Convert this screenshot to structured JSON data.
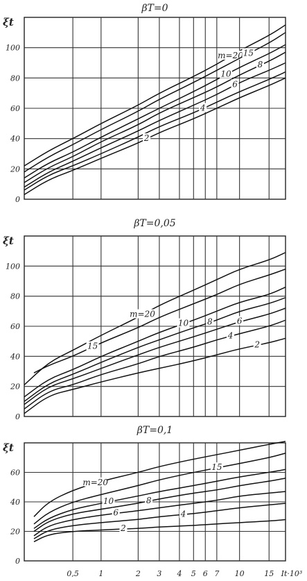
{
  "figure": {
    "x_unit_label": "It·10³",
    "x_ticks": [
      {
        "v": 0.5,
        "label": "0,5"
      },
      {
        "v": 1,
        "label": "1"
      },
      {
        "v": 2,
        "label": "2"
      },
      {
        "v": 3,
        "label": "3"
      },
      {
        "v": 4,
        "label": "4"
      },
      {
        "v": 5,
        "label": "5"
      },
      {
        "v": 6,
        "label": "6"
      },
      {
        "v": 7,
        "label": "7"
      },
      {
        "v": 10,
        "label": "10"
      },
      {
        "v": 15,
        "label": "15"
      }
    ]
  },
  "chart_data": [
    {
      "type": "line",
      "title": "βT=0",
      "ylabel": "ξt",
      "xlabel": "It·10³",
      "ylim": [
        0,
        120
      ],
      "yticks": [
        0,
        20,
        40,
        60,
        80,
        100
      ],
      "xlim": [
        0,
        20
      ],
      "grid": true,
      "series": [
        {
          "name": "m=20",
          "label": "m=20",
          "x": [
            0,
            0.25,
            0.5,
            1,
            2,
            3,
            5,
            7,
            10,
            15,
            20
          ],
          "y": [
            22,
            32,
            40,
            50,
            62,
            70,
            81,
            89,
            98,
            108,
            115
          ]
        },
        {
          "name": "15",
          "label": "15",
          "x": [
            0,
            0.25,
            0.5,
            1,
            2,
            3,
            5,
            7,
            10,
            15,
            20
          ],
          "y": [
            18,
            28,
            36,
            46,
            58,
            66,
            77,
            85,
            93,
            103,
            110
          ]
        },
        {
          "name": "10",
          "label": "10",
          "x": [
            0,
            0.25,
            0.5,
            1,
            2,
            3,
            5,
            7,
            10,
            15,
            20
          ],
          "y": [
            14,
            24,
            31,
            41,
            53,
            60,
            71,
            79,
            87,
            96,
            102
          ]
        },
        {
          "name": "8",
          "label": "8",
          "x": [
            0,
            0.25,
            0.5,
            1,
            2,
            3,
            5,
            7,
            10,
            15,
            20
          ],
          "y": [
            11,
            21,
            28,
            38,
            49,
            57,
            67,
            74,
            82,
            91,
            97
          ]
        },
        {
          "name": "6",
          "label": "6",
          "x": [
            0,
            0.25,
            0.5,
            1,
            2,
            3,
            5,
            7,
            10,
            15,
            20
          ],
          "y": [
            8,
            18,
            25,
            34,
            45,
            52,
            62,
            69,
            77,
            85,
            90
          ]
        },
        {
          "name": "4",
          "label": "4",
          "x": [
            0,
            0.25,
            0.5,
            1,
            2,
            3,
            5,
            7,
            10,
            15,
            20
          ],
          "y": [
            6,
            16,
            22,
            30,
            41,
            48,
            57,
            64,
            71,
            79,
            84
          ]
        },
        {
          "name": "2",
          "label": "2",
          "x": [
            0,
            0.25,
            0.5,
            1,
            2,
            3,
            5,
            7,
            10,
            15,
            20
          ],
          "y": [
            3,
            13,
            19,
            27,
            37,
            44,
            53,
            60,
            67,
            75,
            80
          ]
        }
      ]
    },
    {
      "type": "line",
      "title": "βT=0,05",
      "ylabel": "ξt",
      "xlabel": "It·10³",
      "ylim": [
        0,
        120
      ],
      "yticks": [
        0,
        20,
        40,
        60,
        80,
        100
      ],
      "xlim": [
        0,
        20
      ],
      "grid": true,
      "series": [
        {
          "name": "m=20",
          "label": "m=20",
          "x": [
            0,
            0.25,
            0.5,
            1,
            2,
            3,
            5,
            7,
            10,
            15,
            20
          ],
          "y": [
            21,
            36,
            44,
            54,
            66,
            74,
            84,
            91,
            98,
            104,
            109
          ]
        },
        {
          "name": "15",
          "label": "15",
          "x": [
            0.1,
            0.25,
            0.5,
            1,
            2,
            3,
            5,
            7,
            10,
            15,
            20
          ],
          "y": [
            29,
            34,
            40,
            49,
            59,
            66,
            75,
            81,
            88,
            94,
            98
          ]
        },
        {
          "name": "10",
          "label": "10",
          "x": [
            0,
            0.25,
            0.5,
            1,
            2,
            3,
            5,
            7,
            10,
            15,
            20
          ],
          "y": [
            13,
            25,
            31,
            40,
            50,
            56,
            64,
            70,
            76,
            81,
            86
          ]
        },
        {
          "name": "8",
          "label": "8",
          "x": [
            0,
            0.25,
            0.5,
            1,
            2,
            3,
            5,
            7,
            10,
            15,
            20
          ],
          "y": [
            10,
            22,
            28,
            36,
            46,
            51,
            59,
            64,
            70,
            75,
            79
          ]
        },
        {
          "name": "6",
          "label": "6",
          "x": [
            0,
            0.25,
            0.5,
            1,
            2,
            3,
            5,
            7,
            10,
            15,
            20
          ],
          "y": [
            8,
            20,
            25,
            32,
            41,
            46,
            53,
            58,
            63,
            68,
            72
          ]
        },
        {
          "name": "4",
          "label": "4",
          "x": [
            0,
            0.25,
            0.5,
            1,
            2,
            3,
            5,
            7,
            10,
            15,
            20
          ],
          "y": [
            5,
            17,
            21,
            28,
            35,
            40,
            46,
            51,
            55,
            60,
            64
          ]
        },
        {
          "name": "2",
          "label": "2",
          "x": [
            0,
            0.25,
            0.5,
            1,
            2,
            3,
            5,
            7,
            10,
            15,
            20
          ],
          "y": [
            2,
            14,
            18,
            23,
            29,
            32,
            37,
            41,
            45,
            49,
            52
          ]
        }
      ]
    },
    {
      "type": "line",
      "title": "βT=0,1",
      "ylabel": "ξt",
      "xlabel": "It·10³",
      "ylim": [
        0,
        80
      ],
      "yticks": [
        0,
        20,
        40,
        60
      ],
      "xlim": [
        0,
        20
      ],
      "grid": true,
      "series": [
        {
          "name": "m=20",
          "label": "m=20",
          "x": [
            0.1,
            0.25,
            0.5,
            1,
            2,
            3,
            5,
            7,
            10,
            15,
            20
          ],
          "y": [
            30,
            40,
            48,
            54,
            60,
            64,
            69,
            72,
            75,
            79,
            81
          ]
        },
        {
          "name": "15",
          "label": "15",
          "x": [
            0.1,
            0.25,
            0.5,
            1,
            2,
            3,
            5,
            7,
            10,
            15,
            20
          ],
          "y": [
            25,
            33,
            40,
            45,
            51,
            55,
            60,
            63,
            66,
            70,
            73
          ]
        },
        {
          "name": "10",
          "label": "10",
          "x": [
            0.1,
            0.25,
            0.5,
            1,
            2,
            3,
            5,
            7,
            10,
            15,
            20
          ],
          "y": [
            22,
            29,
            35,
            39,
            44,
            47,
            51,
            54,
            57,
            60,
            62
          ]
        },
        {
          "name": "8",
          "label": "8",
          "x": [
            0.1,
            0.25,
            0.5,
            1,
            2,
            3,
            5,
            7,
            10,
            15,
            20
          ],
          "y": [
            20,
            27,
            32,
            35,
            39,
            42,
            46,
            48,
            51,
            54,
            56
          ]
        },
        {
          "name": "6",
          "label": "6",
          "x": [
            0.1,
            0.25,
            0.5,
            1,
            2,
            3,
            5,
            7,
            10,
            15,
            20
          ],
          "y": [
            17,
            24,
            28,
            31,
            34,
            36,
            39,
            41,
            44,
            46,
            47
          ]
        },
        {
          "name": "4",
          "label": "4",
          "x": [
            0.1,
            0.25,
            0.5,
            1,
            2,
            3,
            5,
            7,
            10,
            15,
            20
          ],
          "y": [
            15,
            21,
            24,
            26,
            28,
            30,
            32,
            34,
            36,
            38,
            39
          ]
        },
        {
          "name": "2",
          "label": "2",
          "x": [
            0.1,
            0.25,
            0.5,
            1,
            2,
            3,
            5,
            7,
            10,
            15,
            20
          ],
          "y": [
            13,
            18,
            20,
            21,
            22,
            23,
            24,
            25,
            26,
            27,
            28
          ]
        }
      ]
    }
  ]
}
